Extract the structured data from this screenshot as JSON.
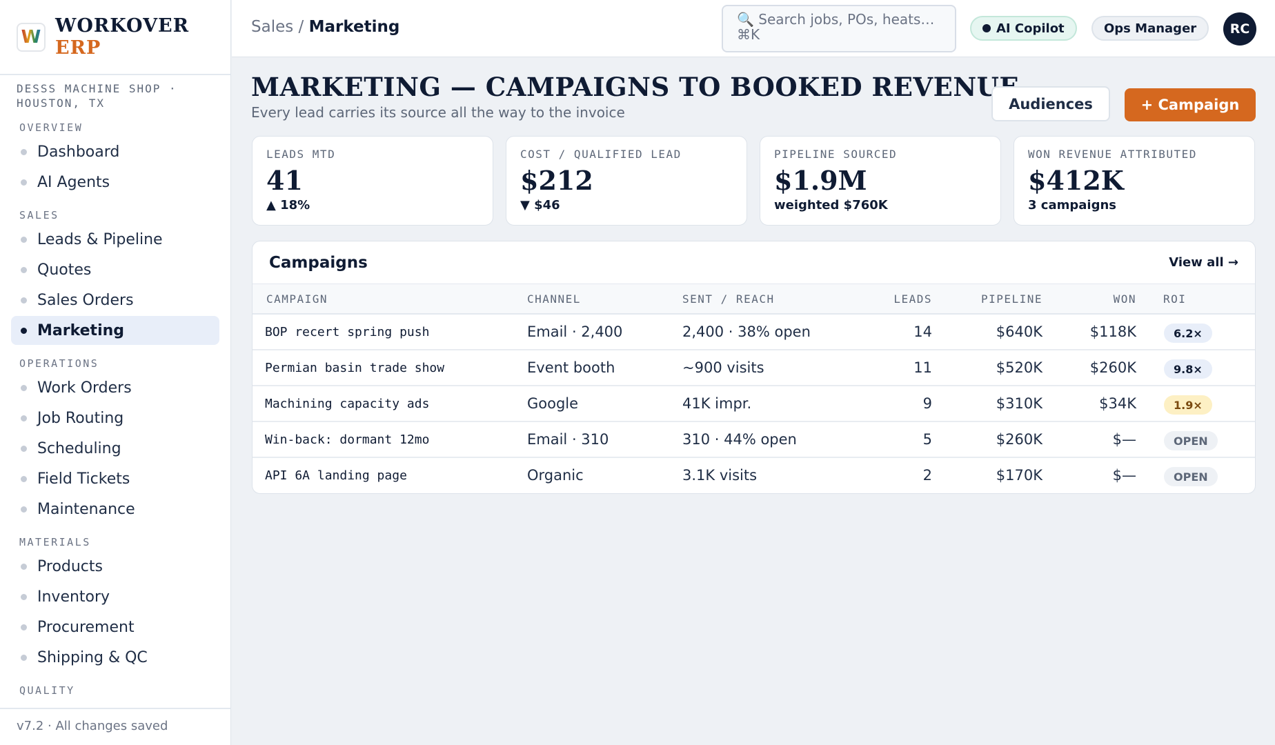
{
  "brand": {
    "logo_letter": "W",
    "name_line1": "WORKOVER",
    "name_line2": "ERP",
    "shop": "DESSS MACHINE SHOP · HOUSTON, TX"
  },
  "sidebar": {
    "sections": [
      {
        "title": "OVERVIEW",
        "items": [
          "Dashboard",
          "AI Agents"
        ]
      },
      {
        "title": "SALES",
        "items": [
          "Leads & Pipeline",
          "Quotes",
          "Sales Orders",
          "Marketing"
        ]
      },
      {
        "title": "OPERATIONS",
        "items": [
          "Work Orders",
          "Job Routing",
          "Scheduling",
          "Field Tickets",
          "Maintenance"
        ]
      },
      {
        "title": "MATERIALS",
        "items": [
          "Products",
          "Inventory",
          "Procurement",
          "Shipping & QC"
        ]
      },
      {
        "title": "QUALITY",
        "items": []
      }
    ],
    "active_item": "Marketing",
    "footer": "v7.2 · All changes saved"
  },
  "topbar": {
    "breadcrumb_parent": "Sales",
    "breadcrumb_sep": " / ",
    "breadcrumb_current": "Marketing",
    "search_placeholder": "🔍 Search jobs, POs, heats… ⌘K",
    "copilot_label": "AI Copilot",
    "role_label": "Ops Manager",
    "avatar_initials": "RC"
  },
  "page": {
    "title": "MARKETING — CAMPAIGNS TO BOOKED REVENUE",
    "subtitle": "Every lead carries its source all the way to the invoice",
    "audiences_button": "Audiences",
    "campaign_button": "+ Campaign"
  },
  "kpis": [
    {
      "label": "LEADS MTD",
      "value": "41",
      "delta": "▲ 18%"
    },
    {
      "label": "COST / QUALIFIED LEAD",
      "value": "$212",
      "delta": "▼ $46"
    },
    {
      "label": "PIPELINE SOURCED",
      "value": "$1.9M",
      "delta": "weighted $760K"
    },
    {
      "label": "WON REVENUE ATTRIBUTED",
      "value": "$412K",
      "delta": "3 campaigns"
    }
  ],
  "campaigns": {
    "title": "Campaigns",
    "view_all": "View all →",
    "columns": [
      "CAMPAIGN",
      "CHANNEL",
      "SENT / REACH",
      "LEADS",
      "PIPELINE",
      "WON",
      "ROI"
    ],
    "rows": [
      {
        "campaign": "BOP recert spring push",
        "channel": "Email · 2,400",
        "reach": "2,400 · 38% open",
        "leads": "14",
        "pipeline": "$640K",
        "won": "$118K",
        "roi": "6.2×",
        "roi_style": "blue"
      },
      {
        "campaign": "Permian basin trade show",
        "channel": "Event booth",
        "reach": "~900 visits",
        "leads": "11",
        "pipeline": "$520K",
        "won": "$260K",
        "roi": "9.8×",
        "roi_style": "blue"
      },
      {
        "campaign": "Machining capacity ads",
        "channel": "Google",
        "reach": "41K impr.",
        "leads": "9",
        "pipeline": "$310K",
        "won": "$34K",
        "roi": "1.9×",
        "roi_style": "amber"
      },
      {
        "campaign": "Win-back: dormant 12mo",
        "channel": "Email · 310",
        "reach": "310 · 44% open",
        "leads": "5",
        "pipeline": "$260K",
        "won": "$—",
        "roi": "OPEN",
        "roi_style": "open"
      },
      {
        "campaign": "API 6A landing page",
        "channel": "Organic",
        "reach": "3.1K visits",
        "leads": "2",
        "pipeline": "$170K",
        "won": "$—",
        "roi": "OPEN",
        "roi_style": "open"
      }
    ]
  },
  "colors": {
    "navy": "#0f1b33",
    "accent_orange": "#d5681f",
    "background": "#eef1f5"
  }
}
